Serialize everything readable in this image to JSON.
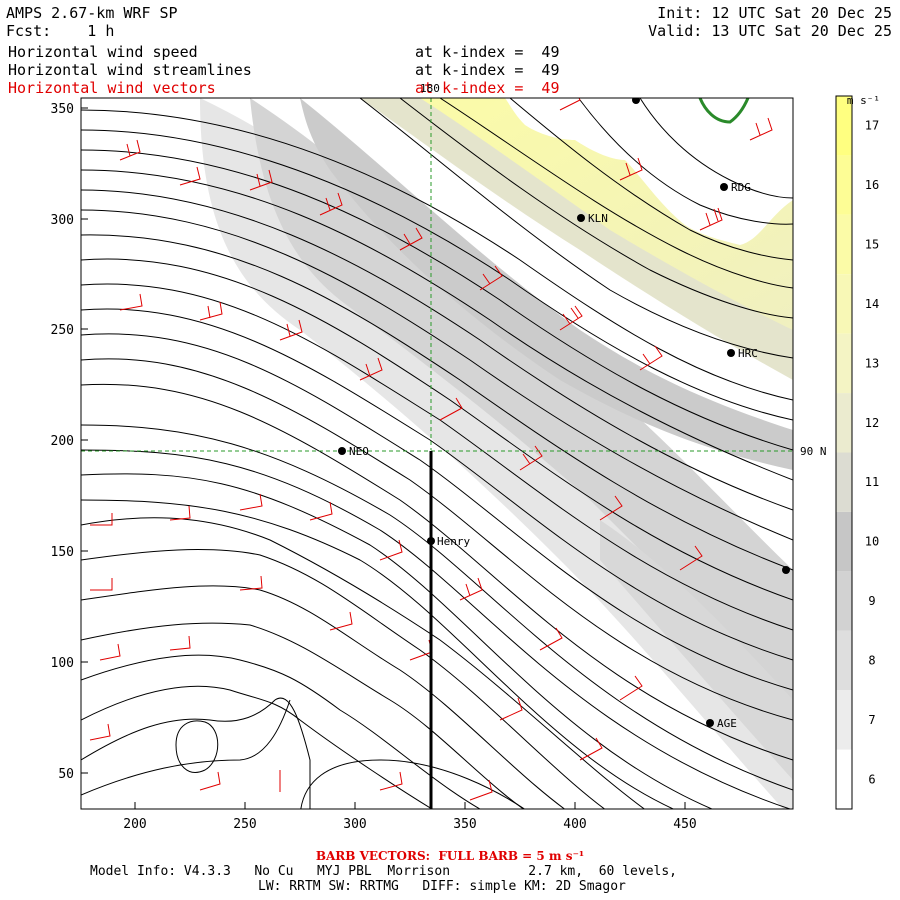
{
  "header": {
    "model_title": "AMPS 2.67-km WRF SP",
    "forecast_label": "Fcst:    1 h",
    "init_line": "Init: 12 UTC Sat 20 Dec 25",
    "valid_line": "Valid: 13 UTC Sat 20 Dec 25",
    "fields": [
      {
        "name": "Horizontal wind speed",
        "level": "at k-index =  49"
      },
      {
        "name": "Horizontal wind streamlines",
        "level": "at k-index =  49"
      },
      {
        "name": "Horizontal wind vectors",
        "level": "at k-index =  49"
      }
    ]
  },
  "colors": {
    "vector_red": "#e00000",
    "streamline_black": "#000000",
    "ice_shelf_green": "#2a8a2a",
    "guide_green": "#2a9a2a"
  },
  "map": {
    "x_ticks": [
      "200",
      "250",
      "300",
      "350",
      "400",
      "450"
    ],
    "y_ticks": [
      "50",
      "100",
      "150",
      "200",
      "250",
      "300",
      "350"
    ],
    "meridian_label": "180",
    "parallel_label": "90 N",
    "stations": [
      {
        "label": "RDG"
      },
      {
        "label": "KLN"
      },
      {
        "label": "HRC"
      },
      {
        "label": "NEO"
      },
      {
        "label": "Henry"
      },
      {
        "label": "AGE"
      },
      {
        "label": ""
      },
      {
        "label": ""
      }
    ]
  },
  "colorbar": {
    "units": "m s⁻¹",
    "levels": [
      6,
      7,
      8,
      9,
      10,
      11,
      12,
      13,
      14,
      15,
      16,
      17
    ],
    "labels": [
      "6",
      "7",
      "8",
      "9",
      "10",
      "11",
      "12",
      "13",
      "14",
      "15",
      "16",
      "17"
    ],
    "colors": [
      "#ffffff",
      "#ececec",
      "#dedede",
      "#d2d2d2",
      "#c6c6c6",
      "#dcdcd2",
      "#ebebcf",
      "#f4f4c4",
      "#f8f8b6",
      "#fbfba7",
      "#fdfd95",
      "#ffff80"
    ]
  },
  "footer": {
    "barb_note": "BARB VECTORS:  FULL BARB = 5 m s⁻¹",
    "model_info": "Model Info: V4.3.3   No Cu   MYJ PBL  Morrison          2.7 km,  60 levels,",
    "physics": "LW: RRTM SW: RRTMG   DIFF: simple KM: 2D Smagor"
  }
}
